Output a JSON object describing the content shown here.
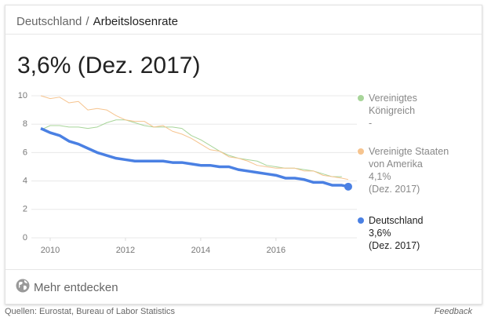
{
  "header": {
    "breadcrumb": [
      "Deutschland",
      "Arbeitslosenrate"
    ],
    "separator": "/"
  },
  "headline": "3,6% (Dez. 2017)",
  "chart_data": {
    "type": "line",
    "x": [
      2009.75,
      2010,
      2010.25,
      2010.5,
      2010.75,
      2011,
      2011.25,
      2011.5,
      2011.75,
      2012,
      2012.25,
      2012.5,
      2012.75,
      2013,
      2013.25,
      2013.5,
      2013.75,
      2014,
      2014.25,
      2014.5,
      2014.75,
      2015,
      2015.25,
      2015.5,
      2015.75,
      2016,
      2016.25,
      2016.5,
      2016.75,
      2017,
      2017.25,
      2017.5,
      2017.75,
      2017.92
    ],
    "series": [
      {
        "name": "Vereinigtes Königreich",
        "color": "#a8d59a",
        "width": 1,
        "latest": "-",
        "values": [
          7.6,
          7.9,
          7.9,
          7.8,
          7.8,
          7.7,
          7.8,
          8.1,
          8.3,
          8.3,
          8.1,
          7.9,
          7.8,
          7.8,
          7.8,
          7.7,
          7.2,
          6.9,
          6.5,
          6.1,
          5.8,
          5.6,
          5.5,
          5.4,
          5.1,
          5.0,
          4.9,
          4.9,
          4.8,
          4.7,
          4.5,
          4.3,
          4.3,
          null
        ]
      },
      {
        "name": "Vereinigte Staaten von Amerika",
        "color": "#f6c48f",
        "width": 1,
        "latest": "4,1%",
        "latest_date": "(Dez. 2017)",
        "values": [
          10.0,
          9.8,
          9.9,
          9.5,
          9.6,
          9.0,
          9.1,
          9.0,
          8.6,
          8.3,
          8.2,
          8.2,
          7.8,
          7.9,
          7.5,
          7.3,
          7.0,
          6.6,
          6.2,
          6.1,
          5.7,
          5.6,
          5.4,
          5.1,
          5.0,
          4.9,
          4.9,
          4.9,
          4.7,
          4.7,
          4.4,
          4.3,
          4.2,
          4.1
        ]
      },
      {
        "name": "Deutschland",
        "color": "#4a80e3",
        "width": 3.5,
        "latest": "3,6%",
        "latest_date": "(Dez. 2017)",
        "values": [
          7.7,
          7.4,
          7.2,
          6.8,
          6.6,
          6.3,
          6.0,
          5.8,
          5.6,
          5.5,
          5.4,
          5.4,
          5.4,
          5.4,
          5.3,
          5.3,
          5.2,
          5.1,
          5.1,
          5.0,
          5.0,
          4.8,
          4.7,
          4.6,
          4.5,
          4.4,
          4.2,
          4.2,
          4.1,
          3.9,
          3.9,
          3.7,
          3.7,
          3.6
        ]
      }
    ],
    "xlim": [
      2009.5,
      2018.15
    ],
    "xticks": [
      2010,
      2012,
      2014,
      2016
    ],
    "ylim": [
      0,
      10
    ],
    "yticks": [
      0,
      2,
      4,
      6,
      8,
      10
    ],
    "grid": true,
    "legend": "right"
  },
  "more": "Mehr entdecken",
  "footer": {
    "sources": "Quellen: Eurostat, Bureau of Labor Statistics",
    "feedback": "Feedback"
  }
}
